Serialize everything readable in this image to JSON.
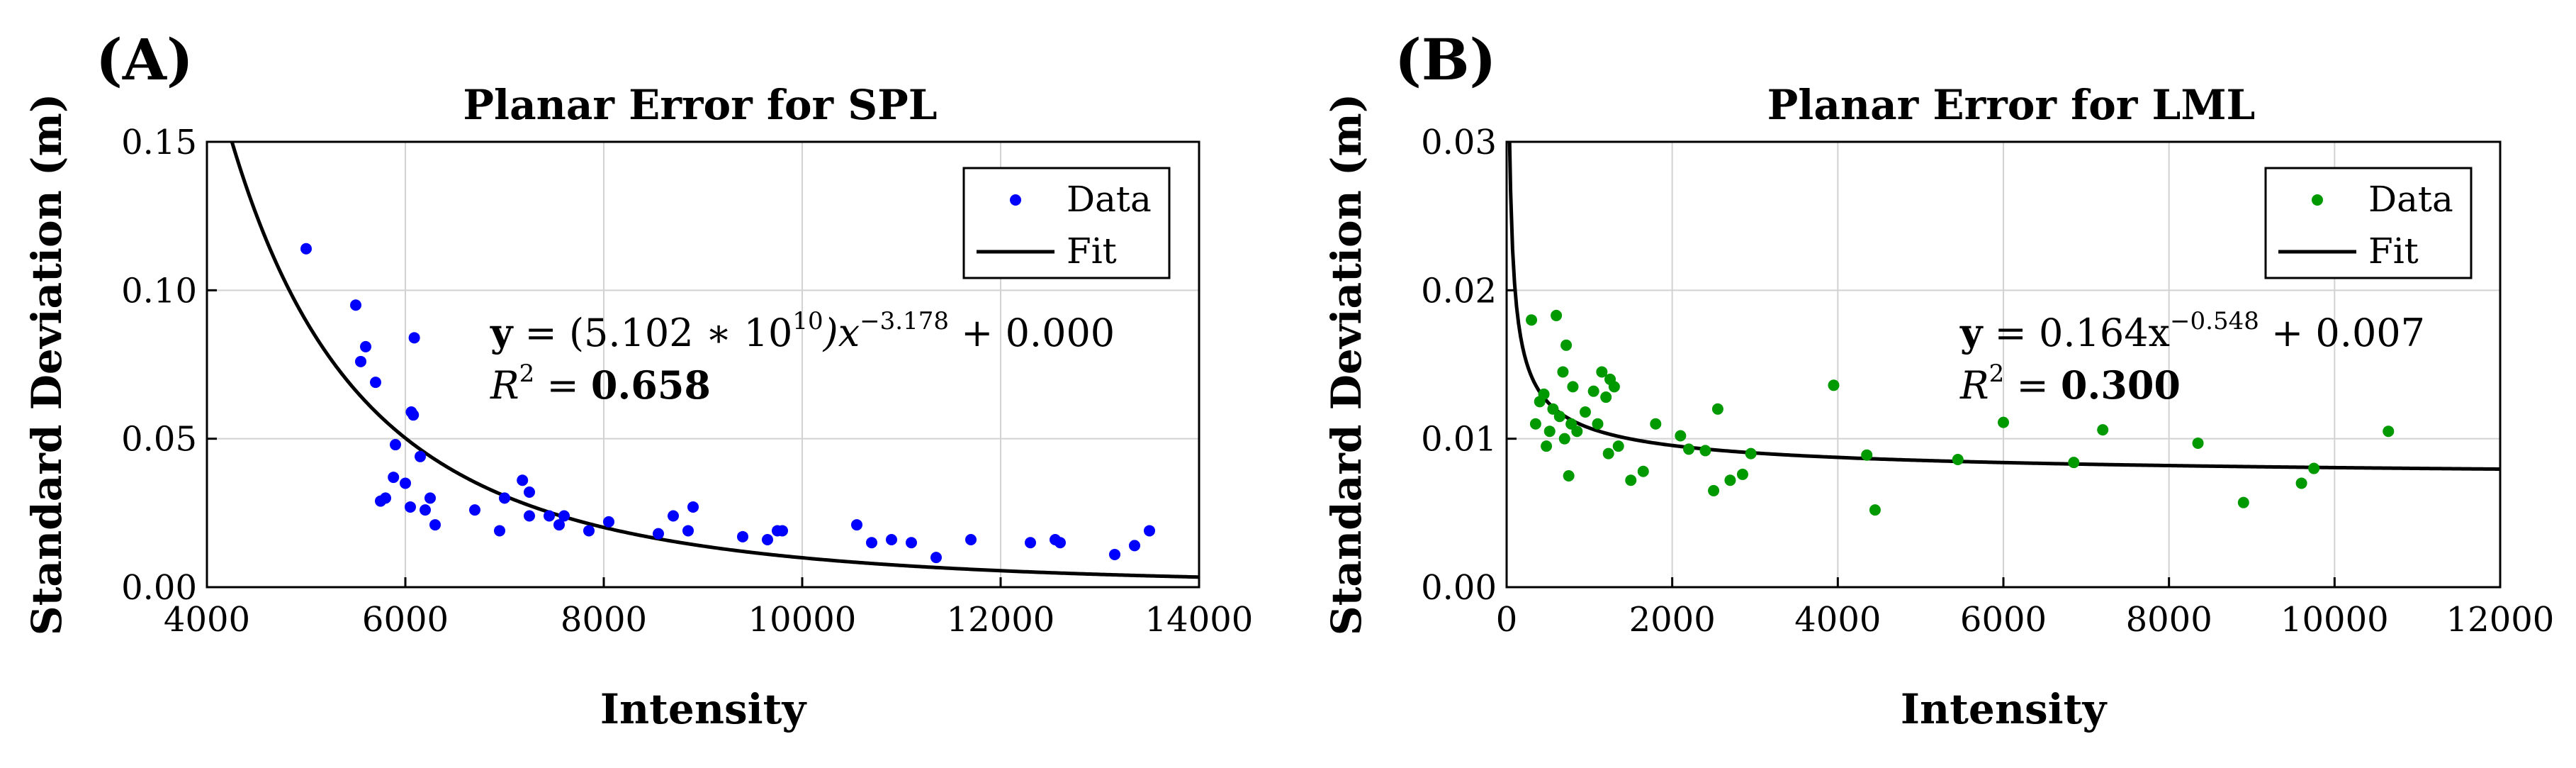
{
  "chart_data": [
    {
      "type": "scatter",
      "panel_label": "(A)",
      "title": "Planar Error for SPL",
      "xlabel": "Intensity",
      "ylabel": "Standard Deviation (m)",
      "xlim": [
        4000,
        14000
      ],
      "ylim": [
        0,
        0.15
      ],
      "xticks": [
        4000,
        6000,
        8000,
        10000,
        12000,
        14000
      ],
      "yticks": [
        0,
        0.05,
        0.1,
        0.15
      ],
      "ytick_labels": [
        "0.00",
        "0.05",
        "0.10",
        "0.15"
      ],
      "grid": true,
      "color": "#0000ff",
      "legend": {
        "position": "top-right",
        "data_label": "Data",
        "fit_label": "Fit"
      },
      "fit": {
        "a": 51020000000.0,
        "b": -3.178,
        "c": 0.0
      },
      "equation": {
        "line1": {
          "y": "y",
          "eq": " = (5.102 ∗ 10",
          "exp1": "10",
          "mid": ")x",
          "exp2": "−3.178",
          "tail": " + 0.000"
        },
        "line2": {
          "r": "R",
          "exp": "2",
          "eq": " = ",
          "val": "0.658"
        }
      },
      "points": [
        [
          5000,
          0.114
        ],
        [
          5500,
          0.095
        ],
        [
          5550,
          0.076
        ],
        [
          5600,
          0.081
        ],
        [
          5700,
          0.069
        ],
        [
          5750,
          0.029
        ],
        [
          5800,
          0.03
        ],
        [
          5900,
          0.048
        ],
        [
          5880,
          0.037
        ],
        [
          6000,
          0.035
        ],
        [
          6050,
          0.027
        ],
        [
          6060,
          0.059
        ],
        [
          6080,
          0.058
        ],
        [
          6090,
          0.084
        ],
        [
          6200,
          0.026
        ],
        [
          6150,
          0.044
        ],
        [
          6250,
          0.03
        ],
        [
          6300,
          0.021
        ],
        [
          6700,
          0.026
        ],
        [
          6950,
          0.019
        ],
        [
          7000,
          0.03
        ],
        [
          7180,
          0.036
        ],
        [
          7250,
          0.032
        ],
        [
          7250,
          0.024
        ],
        [
          7450,
          0.024
        ],
        [
          7550,
          0.021
        ],
        [
          7600,
          0.024
        ],
        [
          7850,
          0.019
        ],
        [
          8050,
          0.022
        ],
        [
          8550,
          0.018
        ],
        [
          8700,
          0.024
        ],
        [
          8850,
          0.019
        ],
        [
          8900,
          0.027
        ],
        [
          9400,
          0.017
        ],
        [
          9650,
          0.016
        ],
        [
          9750,
          0.019
        ],
        [
          9800,
          0.019
        ],
        [
          10550,
          0.021
        ],
        [
          10700,
          0.015
        ],
        [
          10900,
          0.016
        ],
        [
          11100,
          0.015
        ],
        [
          11350,
          0.01
        ],
        [
          11700,
          0.016
        ],
        [
          12300,
          0.015
        ],
        [
          12550,
          0.016
        ],
        [
          12600,
          0.015
        ],
        [
          13150,
          0.011
        ],
        [
          13350,
          0.014
        ],
        [
          13500,
          0.019
        ]
      ]
    },
    {
      "type": "scatter",
      "panel_label": "(B)",
      "title": "Planar Error for LML",
      "xlabel": "Intensity",
      "ylabel": "Standard Deviation (m)",
      "xlim": [
        0,
        12000
      ],
      "ylim": [
        0,
        0.03
      ],
      "xticks": [
        0,
        2000,
        4000,
        6000,
        8000,
        10000,
        12000
      ],
      "yticks": [
        0,
        0.01,
        0.02,
        0.03
      ],
      "ytick_labels": [
        "0.00",
        "0.01",
        "0.02",
        "0.03"
      ],
      "grid": true,
      "color": "#009900",
      "legend": {
        "position": "top-right",
        "data_label": "Data",
        "fit_label": "Fit"
      },
      "fit": {
        "a": 0.164,
        "b": -0.548,
        "c": 0.007
      },
      "equation": {
        "line1": {
          "y": "y",
          "eq": " = 0.164x",
          "exp1": "",
          "mid": "",
          "exp2": "−0.548",
          "tail": " + 0.007"
        },
        "line2": {
          "r": "R",
          "exp": "2",
          "eq": " = ",
          "val": "0.300"
        }
      },
      "points": [
        [
          300,
          0.018
        ],
        [
          350,
          0.011
        ],
        [
          400,
          0.0125
        ],
        [
          450,
          0.013
        ],
        [
          480,
          0.0095
        ],
        [
          520,
          0.0105
        ],
        [
          560,
          0.012
        ],
        [
          600,
          0.0183
        ],
        [
          640,
          0.0115
        ],
        [
          680,
          0.0145
        ],
        [
          700,
          0.01
        ],
        [
          720,
          0.0163
        ],
        [
          750,
          0.0075
        ],
        [
          780,
          0.011
        ],
        [
          800,
          0.0135
        ],
        [
          850,
          0.0105
        ],
        [
          950,
          0.0118
        ],
        [
          1050,
          0.0132
        ],
        [
          1100,
          0.011
        ],
        [
          1150,
          0.0145
        ],
        [
          1200,
          0.0128
        ],
        [
          1230,
          0.009
        ],
        [
          1250,
          0.014
        ],
        [
          1300,
          0.0135
        ],
        [
          1350,
          0.0095
        ],
        [
          1500,
          0.0072
        ],
        [
          1650,
          0.0078
        ],
        [
          1800,
          0.011
        ],
        [
          2100,
          0.0102
        ],
        [
          2200,
          0.0093
        ],
        [
          2400,
          0.0092
        ],
        [
          2500,
          0.0065
        ],
        [
          2550,
          0.012
        ],
        [
          2700,
          0.0072
        ],
        [
          2850,
          0.0076
        ],
        [
          2950,
          0.009
        ],
        [
          3950,
          0.0136
        ],
        [
          4350,
          0.0089
        ],
        [
          4450,
          0.0052
        ],
        [
          5450,
          0.0086
        ],
        [
          6000,
          0.0111
        ],
        [
          6850,
          0.0084
        ],
        [
          7200,
          0.0106
        ],
        [
          8350,
          0.0097
        ],
        [
          8900,
          0.0057
        ],
        [
          9600,
          0.007
        ],
        [
          9750,
          0.008
        ],
        [
          10650,
          0.0105
        ]
      ]
    }
  ]
}
